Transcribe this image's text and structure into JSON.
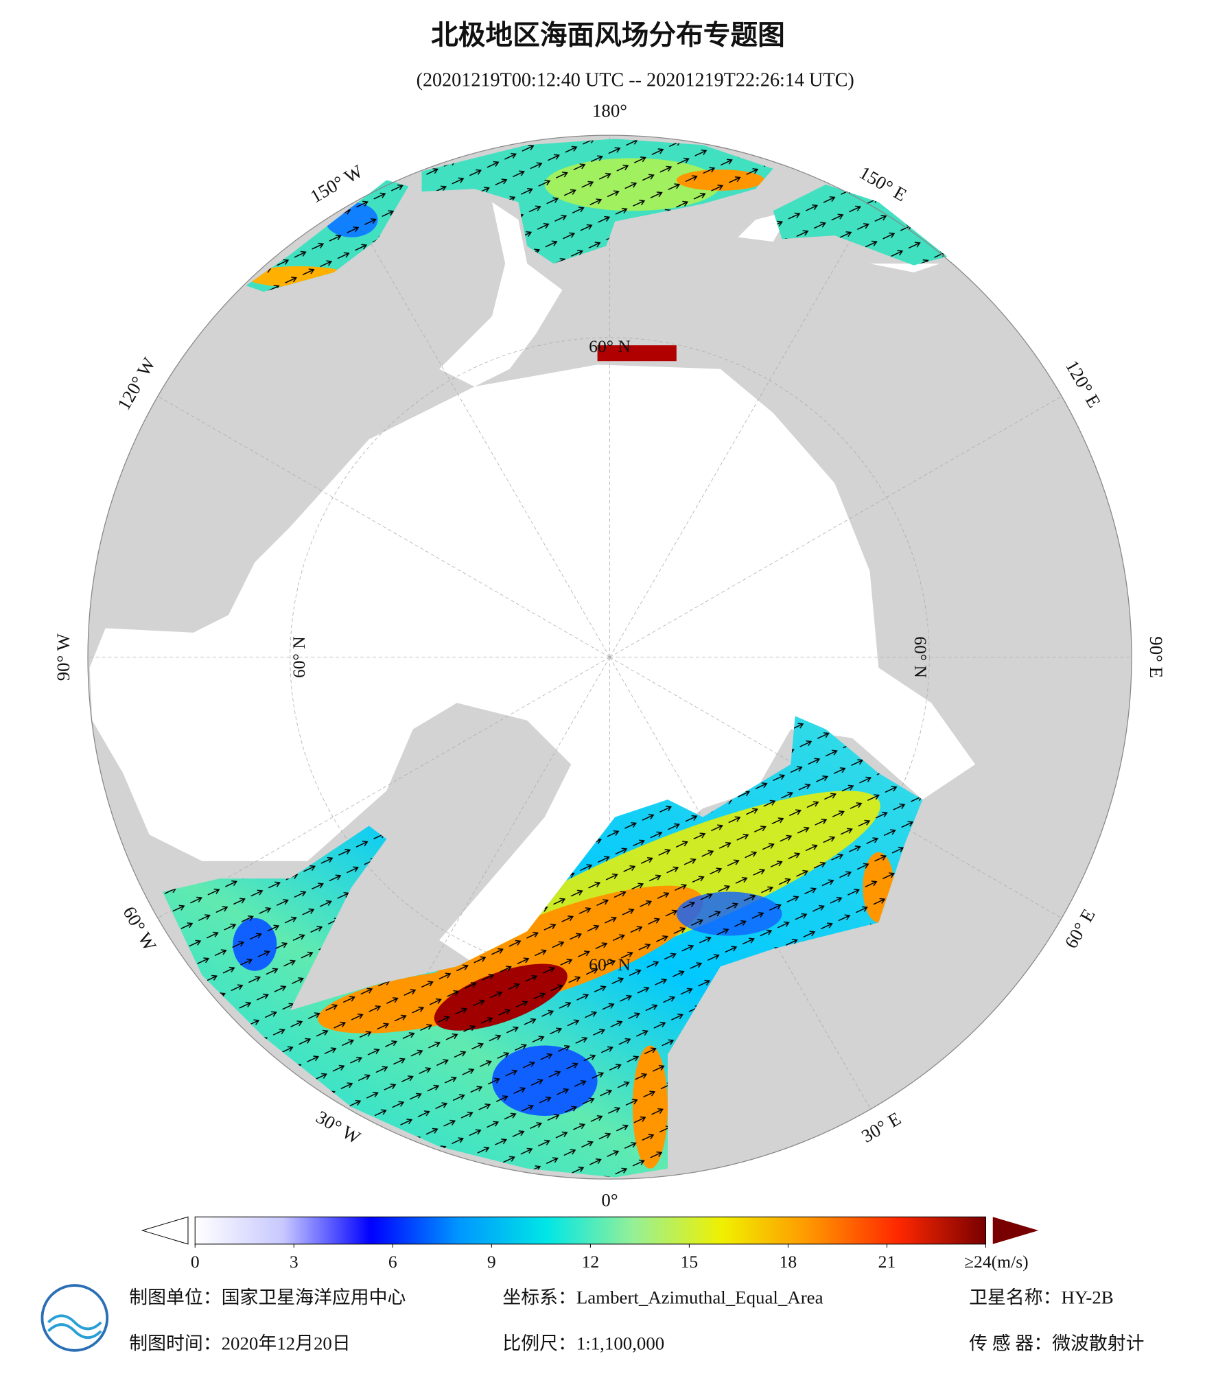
{
  "title": "北极地区海面风场分布专题图",
  "subtitle": "(20201219T00:12:40 UTC -- 20201219T22:26:14 UTC)",
  "lon_ticks": [
    {
      "value": 180,
      "label": "180°"
    },
    {
      "value": 150,
      "label": "150° E"
    },
    {
      "value": 120,
      "label": "120° E"
    },
    {
      "value": 90,
      "label": "90° E"
    },
    {
      "value": 60,
      "label": "60° E"
    },
    {
      "value": 30,
      "label": "30° E"
    },
    {
      "value": 0,
      "label": "0°"
    },
    {
      "value": -30,
      "label": "30° W"
    },
    {
      "value": -60,
      "label": "60° W"
    },
    {
      "value": -90,
      "label": "90° W"
    },
    {
      "value": -120,
      "label": "120° W"
    },
    {
      "value": -150,
      "label": "150° W"
    }
  ],
  "lat_ticks": [
    {
      "value": 60,
      "label": "60° N"
    }
  ],
  "colorbar": {
    "range": [
      0,
      24
    ],
    "ticks": [
      0,
      3,
      6,
      9,
      12,
      15,
      18,
      21,
      {
        "value": 24,
        "label": "≥24(m/s)"
      }
    ],
    "colors": [
      "#ffffff",
      "#c8c8ff",
      "#0000ff",
      "#0096ff",
      "#00e6e6",
      "#96f096",
      "#f0f000",
      "#ff9600",
      "#ff2800",
      "#780000"
    ]
  },
  "footer": {
    "unit": "制图单位：国家卫星海洋应用中心",
    "projection": "坐标系：Lambert_Azimuthal_Equal_Area",
    "satellite": "卫星名称：HY-2B",
    "date": "制图时间：2020年12月20日",
    "scale": "比例尺：1:1,100,000",
    "sensor": "传 感 器：微波散射计"
  }
}
